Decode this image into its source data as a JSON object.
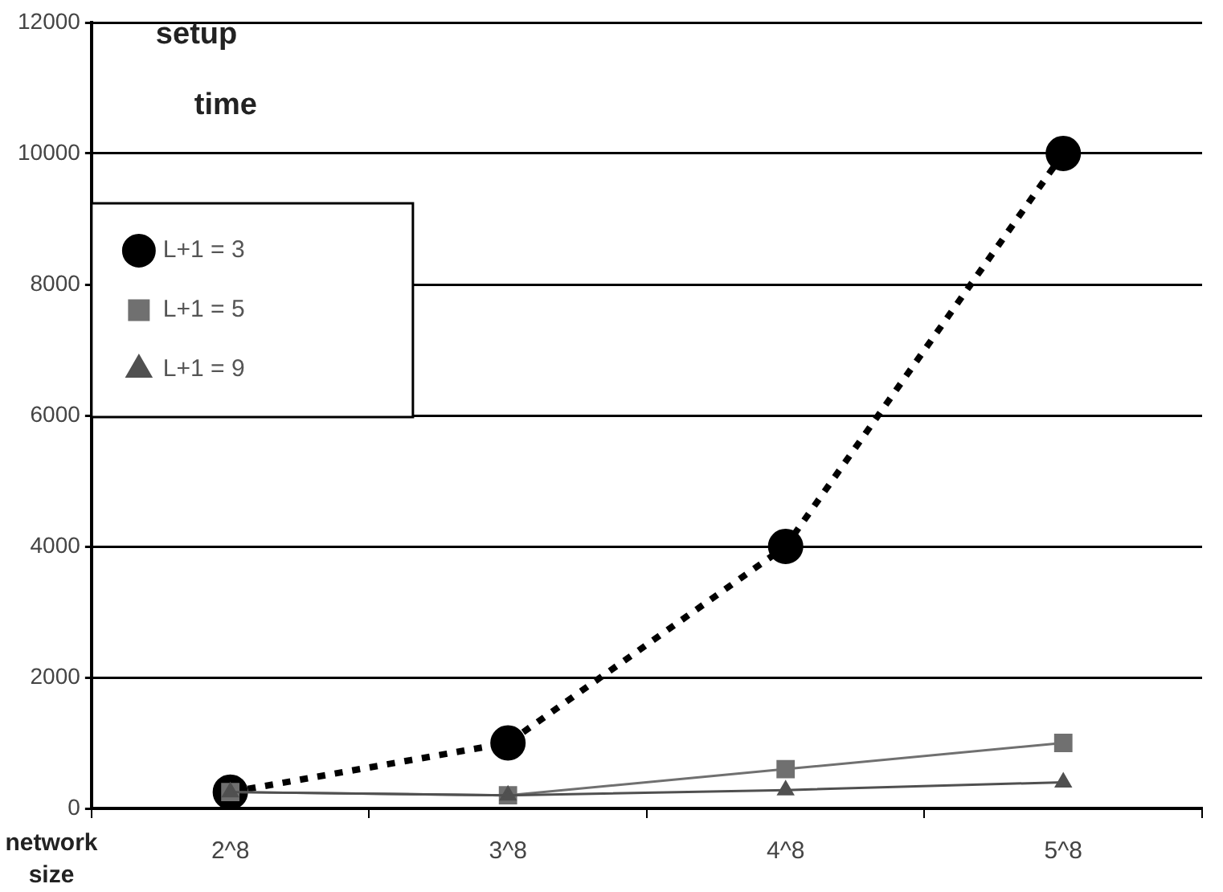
{
  "chart_data": {
    "type": "line",
    "ylabel": "setup time",
    "xlabel": "network size",
    "categories": [
      "2^8",
      "3^8",
      "4^8",
      "5^8"
    ],
    "series": [
      {
        "name": "L+1 = 3",
        "color": "#000000",
        "values": [
          250,
          1000,
          4000,
          10000
        ],
        "marker": "circle",
        "line_style": "dotted"
      },
      {
        "name": "L+1 = 5",
        "color": "#707070",
        "values": [
          250,
          200,
          600,
          1000
        ],
        "marker": "square",
        "line_style": "solid"
      },
      {
        "name": "L+1 = 9",
        "color": "#505050",
        "values": [
          250,
          200,
          280,
          400
        ],
        "marker": "triangle",
        "line_style": "solid"
      }
    ],
    "ylim": [
      0,
      12000
    ],
    "yticks": [
      0,
      2000,
      4000,
      6000,
      8000,
      10000,
      12000
    ],
    "grid": "y",
    "legend": "top left"
  }
}
